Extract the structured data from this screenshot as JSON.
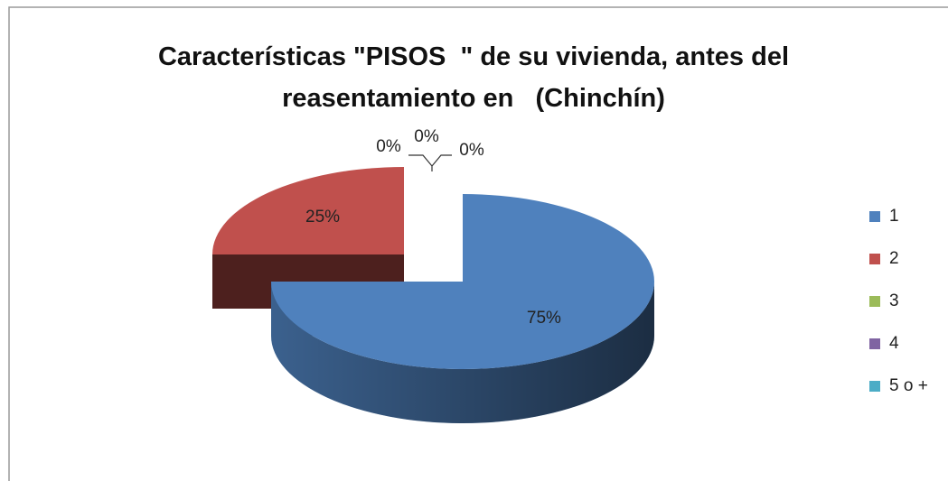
{
  "chart_data": {
    "type": "pie",
    "title": "Características \"PISOS  \" de su vivienda, antes del reasentamiento en   (Chinchín)",
    "categories": [
      "1",
      "2",
      "3",
      "4",
      "5 o +"
    ],
    "values": [
      75,
      25,
      0,
      0,
      0
    ],
    "value_labels": [
      "75%",
      "25%",
      "0%",
      "0%",
      "0%"
    ],
    "colors": [
      "#4f81bd",
      "#c0504d",
      "#9bbb59",
      "#8064a2",
      "#4bacc6"
    ],
    "legend": "right"
  }
}
